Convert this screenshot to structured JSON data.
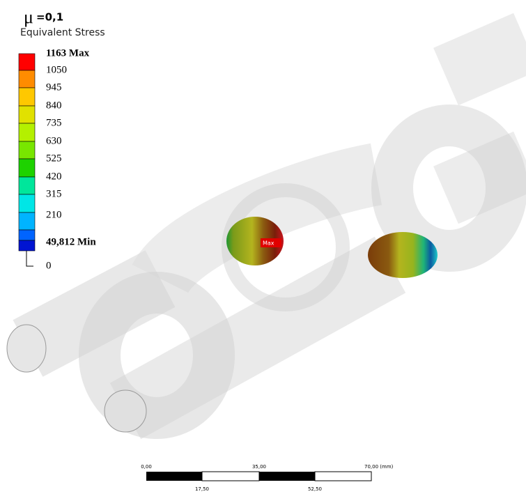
{
  "header": {
    "symbol": "μ",
    "value": "=0,1",
    "quantity": "Equivalent Stress"
  },
  "legend": {
    "colors": [
      "#ff0000",
      "#ff8c00",
      "#ffc800",
      "#e1e100",
      "#b4f000",
      "#78e600",
      "#1ed200",
      "#00e69b",
      "#00e6e6",
      "#00b4ff",
      "#0064ff",
      "#0014d2"
    ],
    "labels": [
      "1163 Max",
      "1050",
      "945",
      "840",
      "735",
      "630",
      "525",
      "420",
      "315",
      "210",
      "49,812 Min",
      "0"
    ]
  },
  "probe": "Max",
  "scale_bar": {
    "top_labels": [
      "0,00",
      "35,00",
      "70,00 (mm)"
    ],
    "bottom_labels": [
      "17,50",
      "52,50"
    ]
  }
}
